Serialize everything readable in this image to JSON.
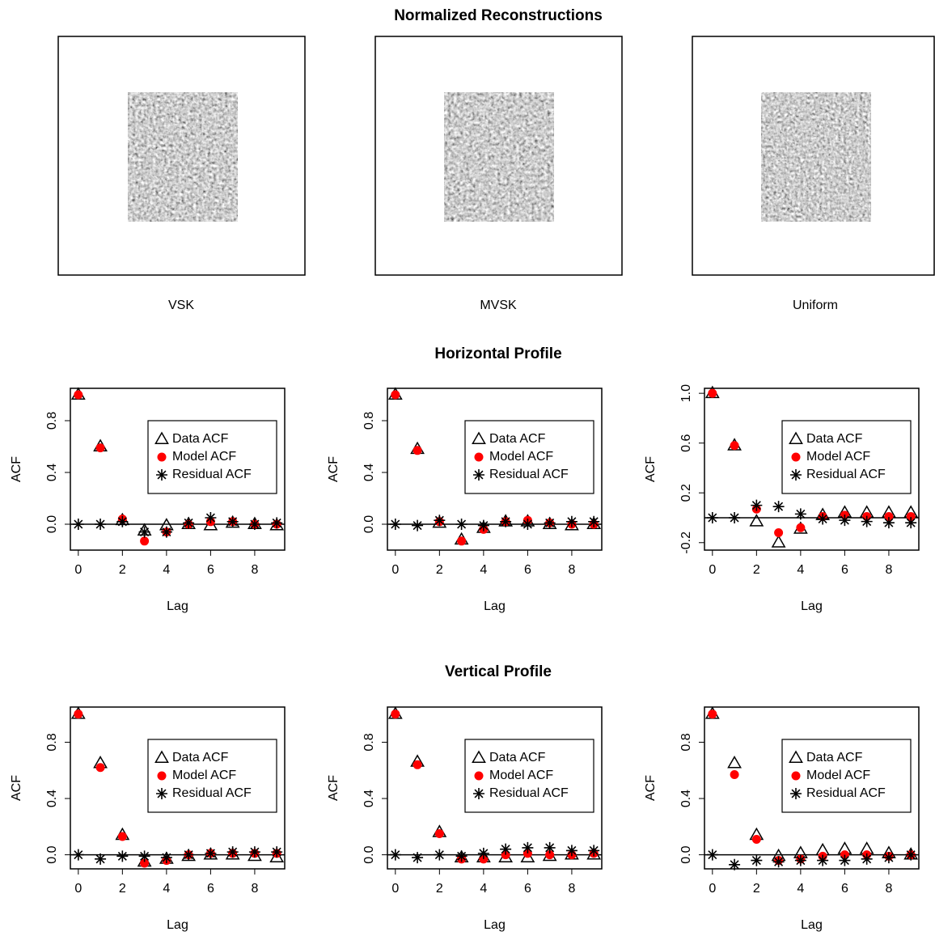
{
  "title": "Normalized Reconstructions",
  "reconstructions": [
    "VSK",
    "MVSK",
    "Uniform"
  ],
  "sections": [
    "Horizontal Profile",
    "Vertical Profile"
  ],
  "chart_data": [
    {
      "type": "scatter",
      "xlabel": "Lag",
      "ylabel": "ACF",
      "x": [
        0,
        1,
        2,
        3,
        4,
        5,
        6,
        7,
        8,
        9
      ],
      "xlim": [
        -0.36,
        9.36
      ],
      "xticks": [
        0,
        2,
        4,
        6,
        8
      ],
      "ylim": [
        -0.2,
        1.05
      ],
      "yticks": [
        {
          "value": 0,
          "label": "0.0"
        },
        {
          "value": 0.4,
          "label": "0.4"
        },
        {
          "value": 0.8,
          "label": "0.8"
        }
      ],
      "hline": 0,
      "legend": "right",
      "series": [
        {
          "name": "Data ACF",
          "marker": "triangle",
          "color": "#000000",
          "values": [
            1.0,
            0.6,
            0.03,
            -0.05,
            -0.01,
            0.0,
            -0.01,
            0.01,
            0.0,
            -0.01
          ]
        },
        {
          "name": "Model ACF",
          "marker": "circle",
          "color": "#ff0000",
          "values": [
            1.0,
            0.59,
            0.04,
            -0.13,
            -0.06,
            0.0,
            0.02,
            0.02,
            0.0,
            0.0
          ]
        },
        {
          "name": "Residual ACF",
          "marker": "asterisk",
          "color": "#000000",
          "values": [
            0.0,
            0.0,
            0.02,
            -0.06,
            -0.06,
            0.01,
            0.05,
            0.02,
            0.0,
            0.01
          ]
        }
      ]
    },
    {
      "type": "scatter",
      "xlabel": "Lag",
      "ylabel": "ACF",
      "x": [
        0,
        1,
        2,
        3,
        4,
        5,
        6,
        7,
        8,
        9
      ],
      "xlim": [
        -0.36,
        9.36
      ],
      "xticks": [
        0,
        2,
        4,
        6,
        8
      ],
      "ylim": [
        -0.2,
        1.05
      ],
      "yticks": [
        {
          "value": 0,
          "label": "0.0"
        },
        {
          "value": 0.4,
          "label": "0.4"
        },
        {
          "value": 0.8,
          "label": "0.8"
        }
      ],
      "hline": 0,
      "legend": "right",
      "series": [
        {
          "name": "Data ACF",
          "marker": "triangle",
          "color": "#000000",
          "values": [
            1.0,
            0.58,
            0.01,
            -0.12,
            -0.03,
            0.02,
            0.02,
            0.0,
            -0.01,
            0.0
          ]
        },
        {
          "name": "Model ACF",
          "marker": "circle",
          "color": "#ff0000",
          "values": [
            1.0,
            0.57,
            0.02,
            -0.13,
            -0.04,
            0.02,
            0.03,
            0.01,
            0.0,
            0.0
          ]
        },
        {
          "name": "Residual ACF",
          "marker": "asterisk",
          "color": "#000000",
          "values": [
            0.0,
            -0.01,
            0.03,
            0.0,
            -0.01,
            0.02,
            0.0,
            0.01,
            0.02,
            0.02
          ]
        }
      ]
    },
    {
      "type": "scatter",
      "xlabel": "Lag",
      "ylabel": "ACF",
      "x": [
        0,
        1,
        2,
        3,
        4,
        5,
        6,
        7,
        8,
        9
      ],
      "xlim": [
        -0.36,
        9.36
      ],
      "xticks": [
        0,
        2,
        4,
        6,
        8
      ],
      "ylim": [
        -0.26,
        1.04
      ],
      "yticks": [
        {
          "value": -0.2,
          "label": "-0.2"
        },
        0.2,
        0.6,
        {
          "value": 1,
          "label": "1.0"
        }
      ],
      "hline": 0,
      "legend": "right",
      "series": [
        {
          "name": "Data ACF",
          "marker": "triangle",
          "color": "#000000",
          "values": [
            1.0,
            0.58,
            -0.03,
            -0.2,
            -0.09,
            0.02,
            0.04,
            0.04,
            0.04,
            0.04
          ]
        },
        {
          "name": "Model ACF",
          "marker": "circle",
          "color": "#ff0000",
          "values": [
            1.0,
            0.58,
            0.07,
            -0.12,
            -0.08,
            0.01,
            0.02,
            0.01,
            0.01,
            0.01
          ]
        },
        {
          "name": "Residual ACF",
          "marker": "asterisk",
          "color": "#000000",
          "values": [
            0.0,
            0.0,
            0.1,
            0.09,
            0.03,
            -0.01,
            -0.02,
            -0.03,
            -0.04,
            -0.04
          ]
        }
      ]
    },
    {
      "type": "scatter",
      "xlabel": "Lag",
      "ylabel": "ACF",
      "x": [
        0,
        1,
        2,
        3,
        4,
        5,
        6,
        7,
        8,
        9
      ],
      "xlim": [
        -0.36,
        9.36
      ],
      "xticks": [
        0,
        2,
        4,
        6,
        8
      ],
      "ylim": [
        -0.1,
        1.05
      ],
      "yticks": [
        {
          "value": 0,
          "label": "0.0"
        },
        {
          "value": 0.4,
          "label": "0.4"
        },
        {
          "value": 0.8,
          "label": "0.8"
        }
      ],
      "hline": 0,
      "legend": "right",
      "series": [
        {
          "name": "Data ACF",
          "marker": "triangle",
          "color": "#000000",
          "values": [
            1.0,
            0.65,
            0.14,
            -0.05,
            -0.03,
            -0.01,
            0.0,
            0.0,
            -0.01,
            -0.02
          ]
        },
        {
          "name": "Model ACF",
          "marker": "circle",
          "color": "#ff0000",
          "values": [
            1.0,
            0.62,
            0.13,
            -0.06,
            -0.04,
            0.0,
            0.01,
            0.01,
            0.01,
            0.01
          ]
        },
        {
          "name": "Residual ACF",
          "marker": "asterisk",
          "color": "#000000",
          "values": [
            0.0,
            -0.03,
            -0.01,
            -0.01,
            -0.02,
            0.0,
            0.01,
            0.02,
            0.02,
            0.02
          ]
        }
      ]
    },
    {
      "type": "scatter",
      "xlabel": "Lag",
      "ylabel": "ACF",
      "x": [
        0,
        1,
        2,
        3,
        4,
        5,
        6,
        7,
        8,
        9
      ],
      "xlim": [
        -0.36,
        9.36
      ],
      "xticks": [
        0,
        2,
        4,
        6,
        8
      ],
      "ylim": [
        -0.1,
        1.05
      ],
      "yticks": [
        {
          "value": 0,
          "label": "0.0"
        },
        {
          "value": 0.4,
          "label": "0.4"
        },
        {
          "value": 0.8,
          "label": "0.8"
        }
      ],
      "hline": 0,
      "legend": "right",
      "series": [
        {
          "name": "Data ACF",
          "marker": "triangle",
          "color": "#000000",
          "values": [
            1.0,
            0.66,
            0.16,
            -0.02,
            -0.02,
            -0.02,
            -0.02,
            -0.01,
            0.0,
            0.0
          ]
        },
        {
          "name": "Model ACF",
          "marker": "circle",
          "color": "#ff0000",
          "values": [
            1.0,
            0.64,
            0.15,
            -0.03,
            -0.03,
            0.0,
            0.01,
            0.0,
            0.0,
            0.01
          ]
        },
        {
          "name": "Residual ACF",
          "marker": "asterisk",
          "color": "#000000",
          "values": [
            0.0,
            -0.02,
            0.0,
            -0.01,
            0.01,
            0.04,
            0.05,
            0.05,
            0.03,
            0.03
          ]
        }
      ]
    },
    {
      "type": "scatter",
      "xlabel": "Lag",
      "ylabel": "ACF",
      "x": [
        0,
        1,
        2,
        3,
        4,
        5,
        6,
        7,
        8,
        9
      ],
      "xlim": [
        -0.36,
        9.36
      ],
      "xticks": [
        0,
        2,
        4,
        6,
        8
      ],
      "ylim": [
        -0.1,
        1.05
      ],
      "yticks": [
        {
          "value": 0,
          "label": "0.0"
        },
        {
          "value": 0.4,
          "label": "0.4"
        },
        {
          "value": 0.8,
          "label": "0.8"
        }
      ],
      "hline": 0,
      "legend": "right",
      "series": [
        {
          "name": "Data ACF",
          "marker": "triangle",
          "color": "#000000",
          "values": [
            1.0,
            0.65,
            0.14,
            -0.01,
            0.01,
            0.03,
            0.04,
            0.04,
            0.01,
            0.0
          ]
        },
        {
          "name": "Model ACF",
          "marker": "circle",
          "color": "#ff0000",
          "values": [
            1.0,
            0.57,
            0.11,
            -0.04,
            -0.03,
            -0.01,
            0.0,
            0.0,
            -0.01,
            0.0
          ]
        },
        {
          "name": "Residual ACF",
          "marker": "asterisk",
          "color": "#000000",
          "values": [
            0.0,
            -0.07,
            -0.04,
            -0.05,
            -0.04,
            -0.04,
            -0.04,
            -0.03,
            -0.02,
            0.0
          ]
        }
      ]
    }
  ]
}
